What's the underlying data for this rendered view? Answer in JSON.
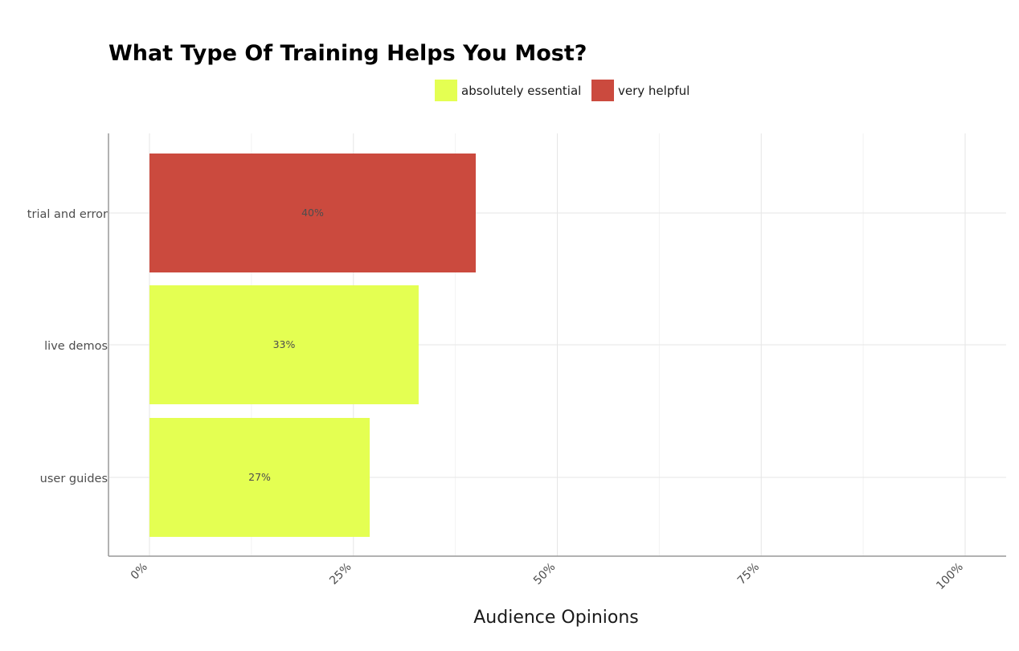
{
  "chart_data": {
    "type": "bar",
    "orientation": "horizontal",
    "title": "What Type Of Training Helps You Most?",
    "xlabel": "Audience Opinions",
    "ylabel": "",
    "xlim": [
      0,
      100
    ],
    "xticks": [
      "0%",
      "25%",
      "50%",
      "75%",
      "100%"
    ],
    "grid": true,
    "legend_position": "top",
    "legend": [
      {
        "name": "absolutely essential",
        "color": "#E4FF52"
      },
      {
        "name": "very helpful",
        "color": "#CB4A3E"
      }
    ],
    "categories": [
      "trial and error",
      "live demos",
      "user guides"
    ],
    "values": [
      40,
      33,
      27
    ],
    "labels": [
      "40%",
      "33%",
      "27%"
    ],
    "bar_colors": [
      "#CB4A3E",
      "#E4FF52",
      "#E4FF52"
    ]
  }
}
